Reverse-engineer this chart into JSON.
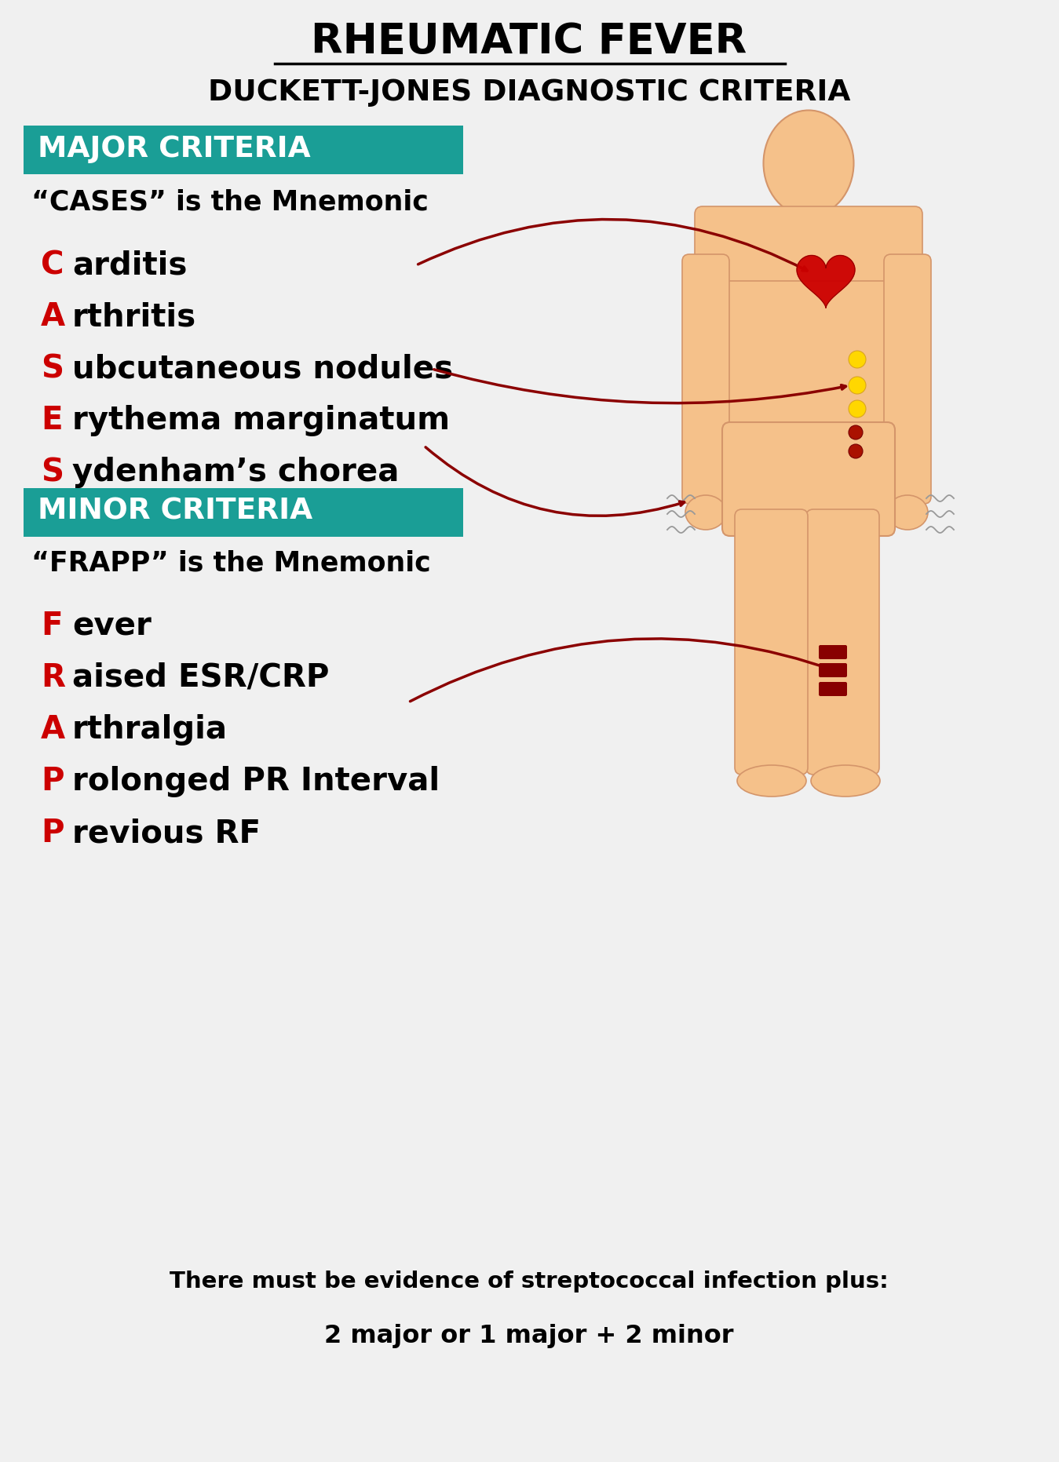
{
  "title": "RHEUMATIC FEVER",
  "subtitle": "DUCKETT-JONES DIAGNOSTIC CRITERIA",
  "bg_color": "#f0f0f0",
  "teal_color": "#1a9e96",
  "red_color": "#cc0000",
  "black": "#000000",
  "white": "#ffffff",
  "major_criteria_label": "MAJOR CRITERIA",
  "major_mnemonic": "“CASES” is the Mnemonic",
  "major_items": [
    [
      "C",
      "arditis"
    ],
    [
      "A",
      "rthritis"
    ],
    [
      "S",
      "ubcutaneous nodules"
    ],
    [
      "E",
      "rythema marginatum"
    ],
    [
      "S",
      "ydenham’s chorea"
    ]
  ],
  "minor_criteria_label": "MINOR CRITERIA",
  "minor_mnemonic": "“FRAPP” is the Mnemonic",
  "minor_items": [
    [
      "F",
      "ever"
    ],
    [
      "R",
      "aised ESR/CRP"
    ],
    [
      "A",
      "rthralgia"
    ],
    [
      "P",
      "rolonged PR Interval"
    ],
    [
      "P",
      "revious RF"
    ]
  ],
  "footer1": "There must be evidence of streptococcal infection plus:",
  "footer2": "2 major or 1 major + 2 minor",
  "body_color": "#F5C18A",
  "body_edge": "#D4956A"
}
